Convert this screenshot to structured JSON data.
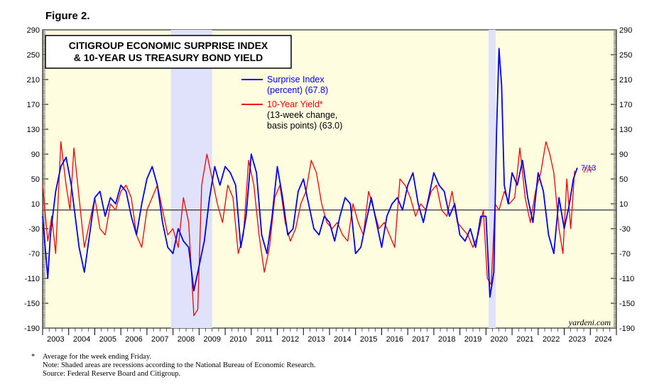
{
  "figure_label": "Figure 2.",
  "footnotes": {
    "star": "*",
    "lines": [
      "Average for the week ending Friday.",
      "Note: Shaded areas are recessions according to the National Bureau of Economic Research.",
      "Source: Federal Reserve Board and Citigroup."
    ]
  },
  "colors": {
    "plot_bg": "#fefde0",
    "recession": "#e0e2fc",
    "surprise": "#0000ee",
    "yield": "#ee0000"
  },
  "chart_data": {
    "type": "line",
    "title": [
      "CITIGROUP ECONOMIC SURPRISE INDEX",
      "& 10-YEAR US TREASURY BOND YIELD"
    ],
    "xlim": [
      2003,
      2025
    ],
    "ylim": [
      -190,
      290
    ],
    "yticks": [
      290,
      250,
      210,
      170,
      130,
      90,
      50,
      10,
      -30,
      -70,
      -110,
      -150,
      -190
    ],
    "ytick_labels": [
      "290",
      "250",
      "210",
      "170",
      "130",
      "90",
      "50",
      "10",
      "-30",
      "-70",
      "-110",
      "-150",
      "-190"
    ],
    "x_labels": [
      "2003",
      "2004",
      "2005",
      "2006",
      "2007",
      "2008",
      "2009",
      "2010",
      "2011",
      "2012",
      "2013",
      "2014",
      "2015",
      "2016",
      "2017",
      "2018",
      "2019",
      "2020",
      "2021",
      "2022",
      "2023",
      "2024"
    ],
    "zero_line": 0,
    "recessions": [
      [
        2007.92,
        2009.5
      ],
      [
        2020.1,
        2020.37
      ]
    ],
    "watermark": "yardeni.com",
    "date_labels": {
      "surprise": "7/13",
      "yield": "7/7"
    },
    "legend": [
      {
        "name": "surprise",
        "lines": [
          "Surprise Index",
          "(percent) (67.8)"
        ]
      },
      {
        "name": "yield",
        "lines": [
          "10-Year Yield*",
          "(13-week change,",
          "basis points) (63.0)"
        ]
      }
    ],
    "series": [
      {
        "name": "Surprise Index",
        "key": "surprise",
        "x": [
          2003.0,
          2003.2,
          2003.3,
          2003.5,
          2003.7,
          2003.9,
          2004.1,
          2004.25,
          2004.4,
          2004.6,
          2004.8,
          2005.0,
          2005.2,
          2005.4,
          2005.6,
          2005.8,
          2006.0,
          2006.2,
          2006.4,
          2006.6,
          2006.8,
          2007.0,
          2007.2,
          2007.4,
          2007.6,
          2007.8,
          2008.0,
          2008.2,
          2008.4,
          2008.6,
          2008.8,
          2009.0,
          2009.2,
          2009.4,
          2009.6,
          2009.8,
          2010.0,
          2010.2,
          2010.4,
          2010.6,
          2010.8,
          2011.0,
          2011.2,
          2011.4,
          2011.6,
          2011.8,
          2012.0,
          2012.2,
          2012.4,
          2012.6,
          2012.8,
          2013.0,
          2013.2,
          2013.4,
          2013.6,
          2013.8,
          2014.0,
          2014.2,
          2014.4,
          2014.6,
          2014.8,
          2015.0,
          2015.2,
          2015.4,
          2015.6,
          2015.8,
          2016.0,
          2016.2,
          2016.4,
          2016.6,
          2016.8,
          2017.0,
          2017.2,
          2017.4,
          2017.6,
          2017.8,
          2018.0,
          2018.2,
          2018.4,
          2018.6,
          2018.8,
          2019.0,
          2019.2,
          2019.4,
          2019.6,
          2019.8,
          2020.0,
          2020.15,
          2020.3,
          2020.4,
          2020.5,
          2020.6,
          2020.7,
          2020.85,
          2021.0,
          2021.2,
          2021.4,
          2021.6,
          2021.8,
          2022.0,
          2022.2,
          2022.4,
          2022.6,
          2022.8,
          2023.0,
          2023.2,
          2023.35,
          2023.5
        ],
        "values": [
          -10,
          -110,
          -40,
          30,
          70,
          85,
          40,
          -10,
          -60,
          -100,
          -40,
          20,
          30,
          -10,
          20,
          10,
          40,
          30,
          -10,
          -40,
          10,
          50,
          70,
          40,
          -20,
          -60,
          -70,
          -30,
          -50,
          -60,
          -130,
          -90,
          -50,
          20,
          70,
          40,
          70,
          60,
          40,
          -60,
          -10,
          90,
          60,
          -40,
          -70,
          -10,
          70,
          20,
          -40,
          -30,
          30,
          50,
          10,
          -30,
          -40,
          -10,
          -20,
          -50,
          -10,
          20,
          10,
          -70,
          -60,
          -20,
          20,
          -20,
          -60,
          -10,
          10,
          20,
          0,
          40,
          60,
          10,
          -20,
          20,
          60,
          40,
          30,
          -10,
          10,
          -40,
          -50,
          -30,
          -60,
          -10,
          -10,
          -140,
          -100,
          120,
          260,
          200,
          40,
          10,
          60,
          40,
          80,
          20,
          -20,
          60,
          30,
          -40,
          -70,
          20,
          -30,
          10,
          50,
          68
        ]
      },
      {
        "name": "10-Year Yield",
        "key": "yield",
        "x": [
          2003.0,
          2003.2,
          2003.35,
          2003.5,
          2003.7,
          2003.9,
          2004.05,
          2004.2,
          2004.4,
          2004.6,
          2004.8,
          2005.0,
          2005.2,
          2005.4,
          2005.6,
          2005.8,
          2006.0,
          2006.2,
          2006.4,
          2006.6,
          2006.8,
          2007.0,
          2007.2,
          2007.4,
          2007.6,
          2007.8,
          2008.0,
          2008.2,
          2008.4,
          2008.6,
          2008.8,
          2008.95,
          2009.1,
          2009.3,
          2009.45,
          2009.7,
          2009.9,
          2010.1,
          2010.3,
          2010.5,
          2010.7,
          2010.9,
          2011.1,
          2011.3,
          2011.5,
          2011.7,
          2011.9,
          2012.1,
          2012.3,
          2012.5,
          2012.7,
          2012.9,
          2013.1,
          2013.3,
          2013.5,
          2013.7,
          2013.9,
          2014.1,
          2014.3,
          2014.5,
          2014.7,
          2014.9,
          2015.1,
          2015.3,
          2015.5,
          2015.7,
          2015.9,
          2016.1,
          2016.3,
          2016.5,
          2016.7,
          2016.9,
          2017.1,
          2017.3,
          2017.5,
          2017.7,
          2017.9,
          2018.1,
          2018.3,
          2018.5,
          2018.7,
          2018.9,
          2019.1,
          2019.3,
          2019.5,
          2019.7,
          2019.9,
          2020.05,
          2020.2,
          2020.35,
          2020.5,
          2020.7,
          2020.9,
          2021.1,
          2021.3,
          2021.5,
          2021.7,
          2021.9,
          2022.1,
          2022.3,
          2022.45,
          2022.6,
          2022.8,
          2022.95,
          2023.1,
          2023.25,
          2023.4
        ],
        "values": [
          40,
          -50,
          -10,
          -70,
          110,
          40,
          0,
          100,
          20,
          -60,
          -20,
          20,
          -30,
          -40,
          10,
          0,
          30,
          40,
          20,
          -40,
          -60,
          0,
          20,
          40,
          0,
          -40,
          -30,
          -60,
          20,
          -20,
          -170,
          -160,
          40,
          90,
          60,
          10,
          -20,
          40,
          20,
          -70,
          -40,
          80,
          40,
          -40,
          -100,
          -60,
          20,
          40,
          -20,
          -50,
          -30,
          10,
          30,
          80,
          60,
          10,
          -20,
          -30,
          -20,
          -40,
          -50,
          10,
          -20,
          -40,
          30,
          0,
          -30,
          -20,
          -40,
          -60,
          50,
          40,
          20,
          -10,
          10,
          0,
          30,
          40,
          0,
          -10,
          30,
          -20,
          -30,
          -40,
          -60,
          -40,
          0,
          -110,
          -120,
          10,
          0,
          30,
          10,
          20,
          100,
          20,
          -20,
          30,
          60,
          110,
          90,
          60,
          -30,
          -70,
          50,
          -30,
          63
        ]
      }
    ]
  }
}
